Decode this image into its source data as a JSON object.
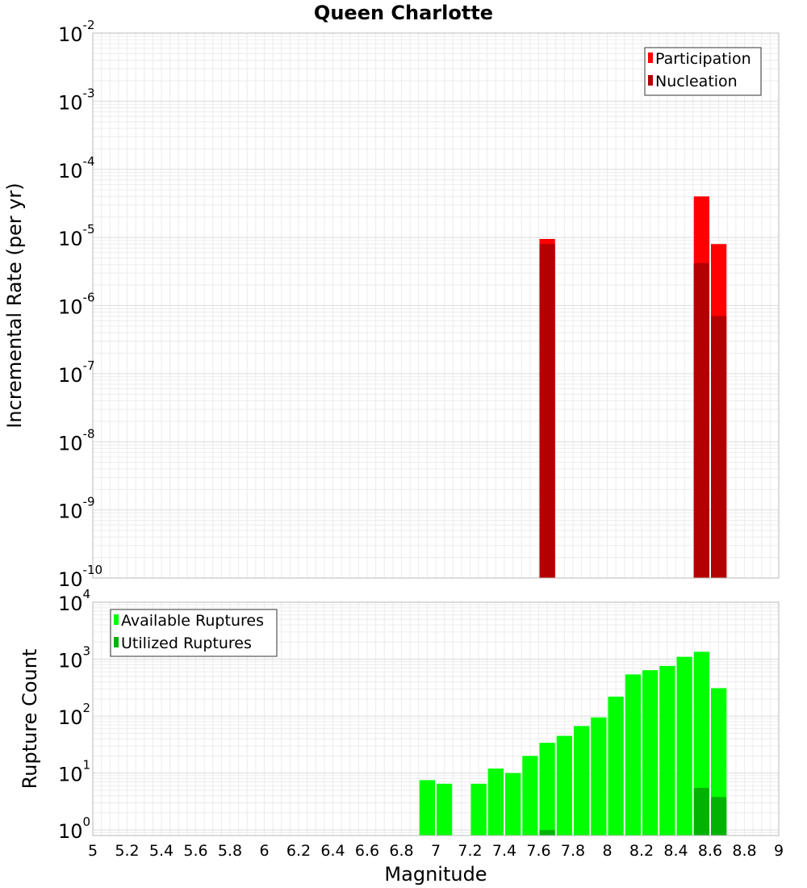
{
  "chart_data": {
    "title": "Queen Charlotte",
    "xlabel": "Magnitude",
    "x_range": [
      5,
      9
    ],
    "x_ticks": [
      "5",
      "5.2",
      "5.4",
      "5.6",
      "5.8",
      "6",
      "6.2",
      "6.4",
      "6.6",
      "6.8",
      "7",
      "7.2",
      "7.4",
      "7.6",
      "7.8",
      "8",
      "8.2",
      "8.4",
      "8.6",
      "8.8",
      "9"
    ],
    "bin_width": 0.1,
    "grid": true,
    "panels": [
      {
        "type": "bar",
        "ylabel": "Incremental Rate (per yr)",
        "y_scale": "log",
        "y_range": [
          1e-10,
          0.01
        ],
        "y_tick_exponents": [
          -10,
          -9,
          -8,
          -7,
          -6,
          -5,
          -4,
          -3,
          -2
        ],
        "legend_position": "top-right",
        "series": [
          {
            "name": "Participation",
            "color": "#ff0000",
            "points": [
              {
                "x": 7.65,
                "y": 9.5e-06
              },
              {
                "x": 8.55,
                "y": 4e-05
              },
              {
                "x": 8.65,
                "y": 8e-06
              }
            ]
          },
          {
            "name": "Nucleation",
            "color": "#b30000",
            "points": [
              {
                "x": 7.65,
                "y": 8e-06
              },
              {
                "x": 8.55,
                "y": 4.2e-06
              },
              {
                "x": 8.65,
                "y": 7e-07
              }
            ]
          }
        ]
      },
      {
        "type": "bar",
        "ylabel": "Rupture Count",
        "y_scale": "log",
        "y_range": [
          0.8,
          10000
        ],
        "y_tick_exponents": [
          0,
          1,
          2,
          3,
          4
        ],
        "legend_position": "top-left",
        "series": [
          {
            "name": "Available Ruptures",
            "color": "#00ff00",
            "points": [
              {
                "x": 6.95,
                "y": 7.5
              },
              {
                "x": 7.05,
                "y": 6.5
              },
              {
                "x": 7.25,
                "y": 6.5
              },
              {
                "x": 7.35,
                "y": 12
              },
              {
                "x": 7.45,
                "y": 10
              },
              {
                "x": 7.55,
                "y": 20
              },
              {
                "x": 7.65,
                "y": 34
              },
              {
                "x": 7.75,
                "y": 45
              },
              {
                "x": 7.85,
                "y": 67
              },
              {
                "x": 7.95,
                "y": 95
              },
              {
                "x": 8.05,
                "y": 220
              },
              {
                "x": 8.15,
                "y": 540
              },
              {
                "x": 8.25,
                "y": 640
              },
              {
                "x": 8.35,
                "y": 760
              },
              {
                "x": 8.45,
                "y": 1100
              },
              {
                "x": 8.55,
                "y": 1350
              },
              {
                "x": 8.65,
                "y": 310
              }
            ]
          },
          {
            "name": "Utilized Ruptures",
            "color": "#00b300",
            "points": [
              {
                "x": 7.65,
                "y": 1
              },
              {
                "x": 8.55,
                "y": 5.5
              },
              {
                "x": 8.65,
                "y": 3.8
              }
            ]
          }
        ]
      }
    ]
  }
}
